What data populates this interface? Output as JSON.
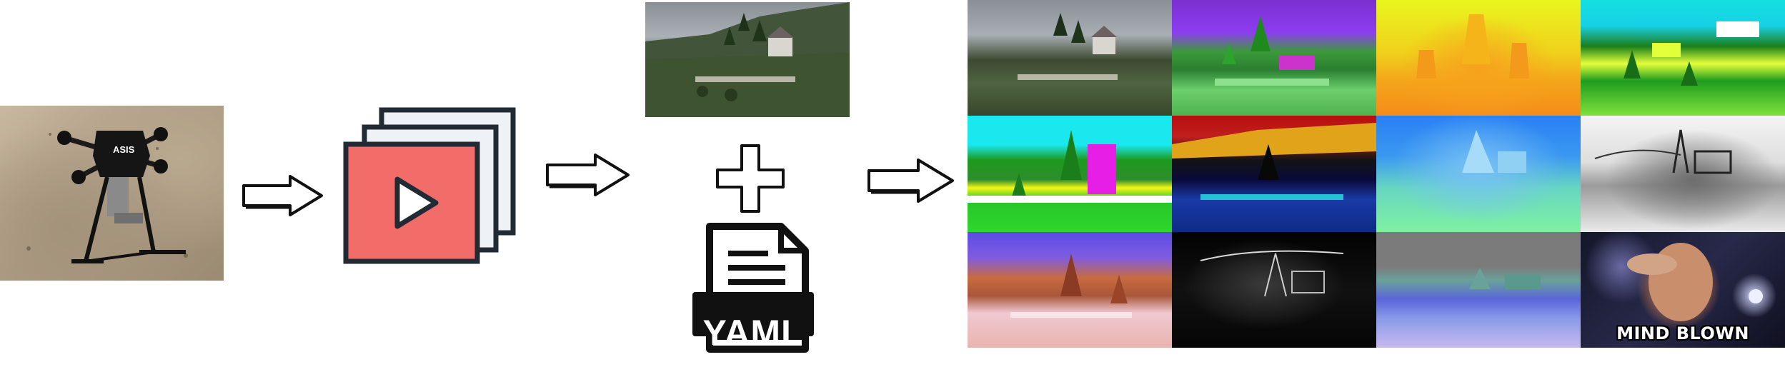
{
  "diagram": {
    "input_image": {
      "subject": "quadcopter drone",
      "label": "ASIS"
    },
    "video_icon": "video-frames-icon",
    "frame_image": "extracted video frame",
    "plus_icon": "plus-icon",
    "config_file": {
      "icon": "yaml-file-icon",
      "label": "YAML"
    },
    "output_grid": {
      "rows": 3,
      "cols": 4,
      "tiles": [
        {
          "name": "rgb"
        },
        {
          "name": "semantic-segmentation-1"
        },
        {
          "name": "depth"
        },
        {
          "name": "semantic-segmentation-2"
        },
        {
          "name": "semantic-segmentation-3"
        },
        {
          "name": "instance-segmentation"
        },
        {
          "name": "surface-normals"
        },
        {
          "name": "grayscale-edges"
        },
        {
          "name": "colorized-variant"
        },
        {
          "name": "sobel-edges"
        },
        {
          "name": "surface-normals-2"
        },
        {
          "name": "meme",
          "caption": "MIND BLOWN"
        }
      ]
    },
    "colors": {
      "video_front": "#f26c6a",
      "video_back": "#eef1f5",
      "stroke": "#222b33",
      "arrow_fill": "#ffffff"
    }
  }
}
